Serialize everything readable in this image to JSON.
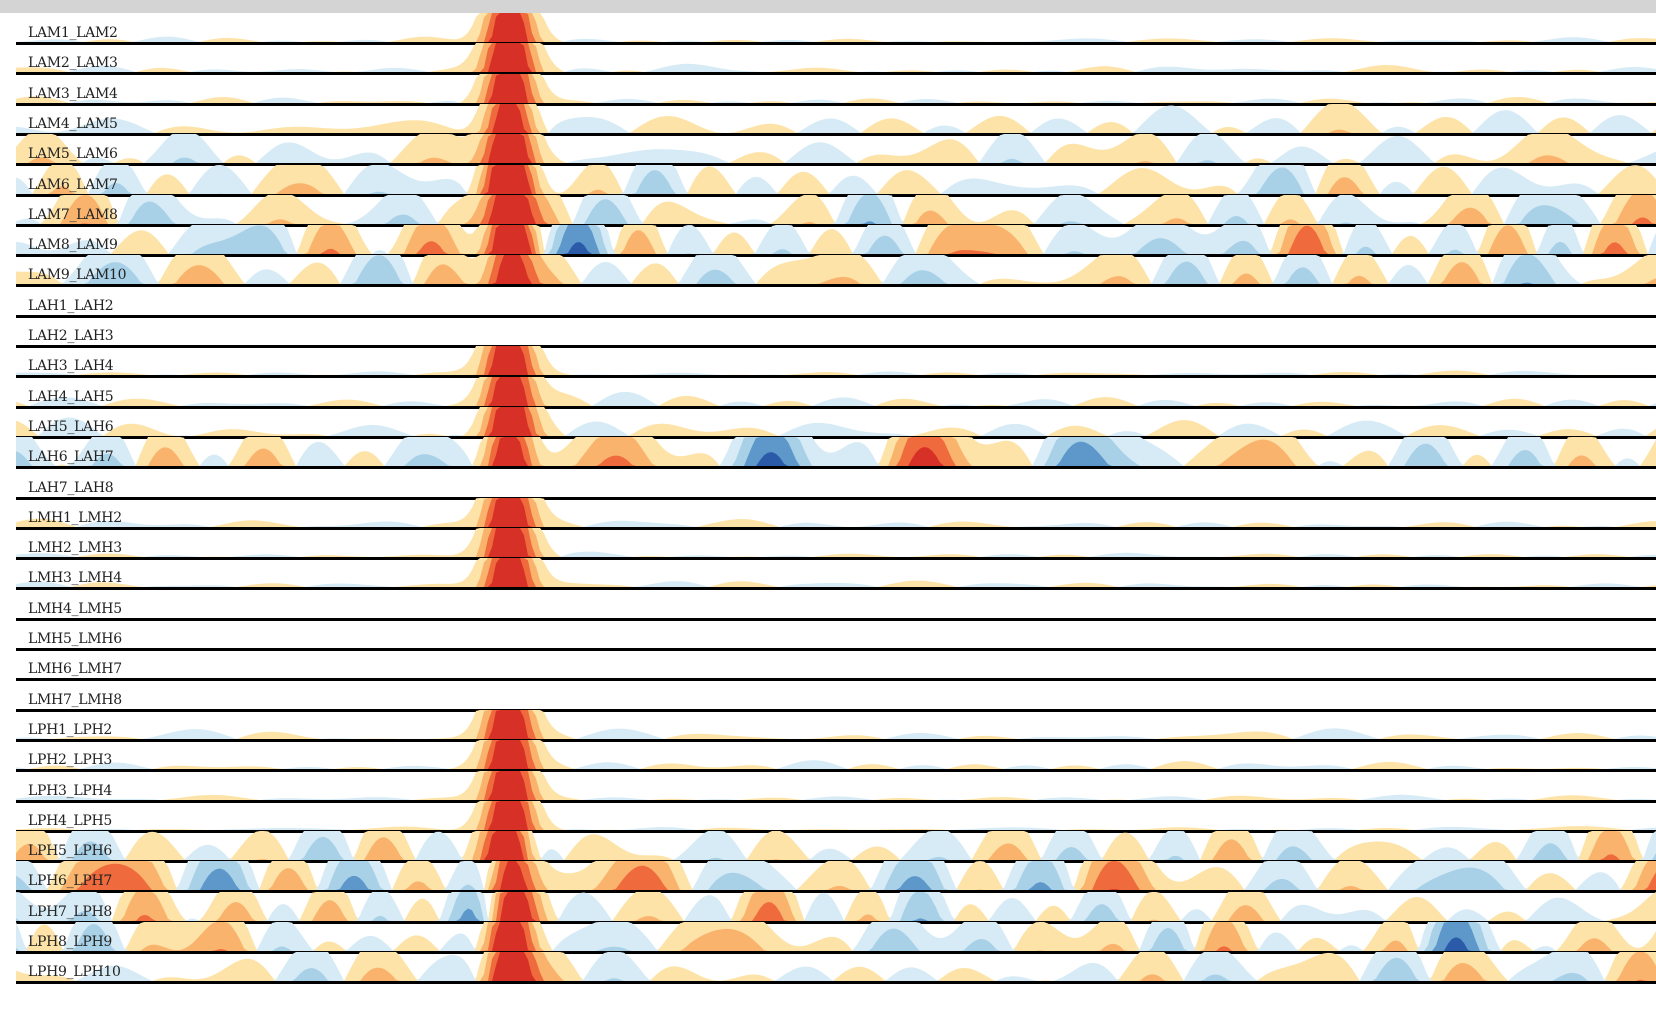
{
  "colors": {
    "pos": [
      "#fde3a7",
      "#f9b36d",
      "#ef6a3c",
      "#d73027"
    ],
    "neg": [
      "#d6ebf5",
      "#a8d1e8",
      "#5e97c9",
      "#2b5aa8"
    ],
    "baseline": "#000000",
    "top_bar": "#d4d4d4"
  },
  "channels": [
    {
      "name": "LAM1_LAM2",
      "activity": 0.05,
      "spike": 1.0
    },
    {
      "name": "LAM2_LAM3",
      "activity": 0.08,
      "spike": 1.0
    },
    {
      "name": "LAM3_LAM4",
      "activity": 0.08,
      "spike": 1.0
    },
    {
      "name": "LAM4_LAM5",
      "activity": 0.25,
      "spike": 1.0
    },
    {
      "name": "LAM5_LAM6",
      "activity": 0.35,
      "spike": 1.0
    },
    {
      "name": "LAM6_LAM7",
      "activity": 0.6,
      "spike": 1.0
    },
    {
      "name": "LAM7_LAM8",
      "activity": 0.8,
      "spike": 1.0
    },
    {
      "name": "LAM8_LAM9",
      "activity": 0.85,
      "spike": 1.0
    },
    {
      "name": "LAM9_LAM10",
      "activity": 0.75,
      "spike": 1.0
    },
    {
      "name": "LAH1_LAH2",
      "activity": 0.0,
      "spike": 0.0
    },
    {
      "name": "LAH2_LAH3",
      "activity": 0.0,
      "spike": 0.0
    },
    {
      "name": "LAH3_LAH4",
      "activity": 0.06,
      "spike": 1.0
    },
    {
      "name": "LAH4_LAH5",
      "activity": 0.12,
      "spike": 1.0
    },
    {
      "name": "LAH5_LAH6",
      "activity": 0.3,
      "spike": 1.0
    },
    {
      "name": "LAH6_LAH7",
      "activity": 0.7,
      "spike": 1.0
    },
    {
      "name": "LAH7_LAH8",
      "activity": 0.0,
      "spike": 0.0
    },
    {
      "name": "LMH1_LMH2",
      "activity": 0.08,
      "spike": 1.0
    },
    {
      "name": "LMH2_LMH3",
      "activity": 0.05,
      "spike": 1.0
    },
    {
      "name": "LMH3_LMH4",
      "activity": 0.06,
      "spike": 1.0
    },
    {
      "name": "LMH4_LMH5",
      "activity": 0.0,
      "spike": 0.0
    },
    {
      "name": "LMH5_LMH6",
      "activity": 0.0,
      "spike": 0.0
    },
    {
      "name": "LMH6_LMH7",
      "activity": 0.0,
      "spike": 0.0
    },
    {
      "name": "LMH7_LMH8",
      "activity": 0.0,
      "spike": 0.0
    },
    {
      "name": "LPH1_LPH2",
      "activity": 0.1,
      "spike": 1.0
    },
    {
      "name": "LPH2_LPH3",
      "activity": 0.08,
      "spike": 1.0
    },
    {
      "name": "LPH3_LPH4",
      "activity": 0.05,
      "spike": 1.0
    },
    {
      "name": "LPH4_LPH5",
      "activity": 0.04,
      "spike": 1.0
    },
    {
      "name": "LPH5_LPH6",
      "activity": 0.8,
      "spike": 1.0
    },
    {
      "name": "LPH6_LPH7",
      "activity": 0.9,
      "spike": 1.0
    },
    {
      "name": "LPH7_LPH8",
      "activity": 0.95,
      "spike": 1.0
    },
    {
      "name": "LPH8_LPH9",
      "activity": 1.0,
      "spike": 1.0
    },
    {
      "name": "LPH9_LPH10",
      "activity": 0.9,
      "spike": 1.0
    }
  ]
}
